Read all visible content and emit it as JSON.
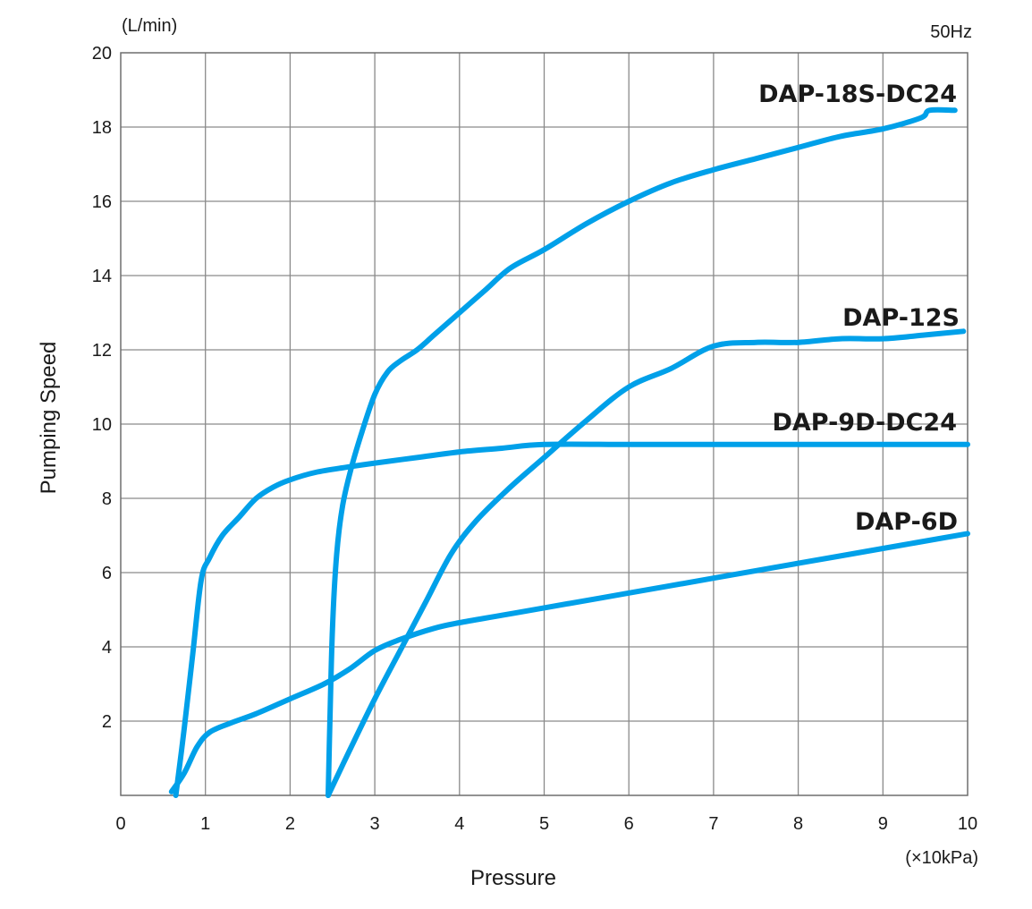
{
  "chart_data": {
    "type": "line",
    "frequency_label": "50Hz",
    "xlabel": "Pressure",
    "x_unit": "(×10kPa)",
    "ylabel": "Pumping Speed",
    "y_unit": "(L/min)",
    "xlim": [
      0,
      10
    ],
    "ylim": [
      0,
      20
    ],
    "x_ticks": [
      "0",
      "1",
      "2",
      "3",
      "4",
      "5",
      "6",
      "7",
      "8",
      "9",
      "10"
    ],
    "y_ticks": [
      "2",
      "4",
      "6",
      "8",
      "10",
      "12",
      "14",
      "16",
      "18",
      "20"
    ],
    "grid": true,
    "line_color": "#00a0e9",
    "series": [
      {
        "name": "DAP-18S-DC24",
        "x": [
          2.45,
          2.47,
          2.5,
          2.55,
          2.62,
          2.72,
          2.85,
          3.0,
          3.15,
          3.3,
          3.5,
          3.7,
          4.0,
          4.3,
          4.6,
          5.0,
          5.5,
          6.0,
          6.5,
          7.0,
          7.5,
          8.0,
          8.5,
          9.0,
          9.45,
          9.55,
          9.85
        ],
        "y": [
          0,
          2.0,
          4.5,
          6.5,
          7.8,
          8.8,
          9.8,
          10.8,
          11.4,
          11.7,
          12.0,
          12.4,
          13.0,
          13.6,
          14.2,
          14.7,
          15.4,
          16.0,
          16.5,
          16.85,
          17.15,
          17.45,
          17.75,
          17.95,
          18.25,
          18.45,
          18.45
        ]
      },
      {
        "name": "DAP-12S",
        "x": [
          2.45,
          2.7,
          3.0,
          3.3,
          3.6,
          3.9,
          4.2,
          4.6,
          5.0,
          5.5,
          6.0,
          6.5,
          7.0,
          7.5,
          8.0,
          8.5,
          9.0,
          9.5,
          9.95
        ],
        "y": [
          0,
          1.2,
          2.6,
          3.9,
          5.2,
          6.5,
          7.4,
          8.3,
          9.1,
          10.1,
          11.0,
          11.5,
          12.1,
          12.2,
          12.2,
          12.3,
          12.3,
          12.4,
          12.5
        ]
      },
      {
        "name": "DAP-9D-DC24",
        "x": [
          0.65,
          0.75,
          0.85,
          0.95,
          1.05,
          1.2,
          1.4,
          1.6,
          1.8,
          2.0,
          2.3,
          2.7,
          3.0,
          3.5,
          4.0,
          4.5,
          5.0,
          6.0,
          7.0,
          8.0,
          9.0,
          10.0
        ],
        "y": [
          0,
          1.8,
          3.8,
          5.8,
          6.4,
          7.0,
          7.5,
          8.0,
          8.3,
          8.5,
          8.7,
          8.85,
          8.95,
          9.1,
          9.25,
          9.35,
          9.45,
          9.45,
          9.45,
          9.45,
          9.45,
          9.45
        ]
      },
      {
        "name": "DAP-6D",
        "x": [
          0.6,
          0.75,
          0.9,
          1.05,
          1.3,
          1.6,
          2.0,
          2.4,
          2.7,
          3.0,
          3.3,
          3.7,
          4.0,
          4.5,
          5.0,
          6.0,
          7.0,
          8.0,
          9.0,
          10.0
        ],
        "y": [
          0.1,
          0.6,
          1.3,
          1.7,
          1.95,
          2.2,
          2.6,
          3.0,
          3.4,
          3.9,
          4.2,
          4.5,
          4.65,
          4.85,
          5.05,
          5.45,
          5.85,
          6.25,
          6.65,
          7.05
        ]
      }
    ]
  }
}
